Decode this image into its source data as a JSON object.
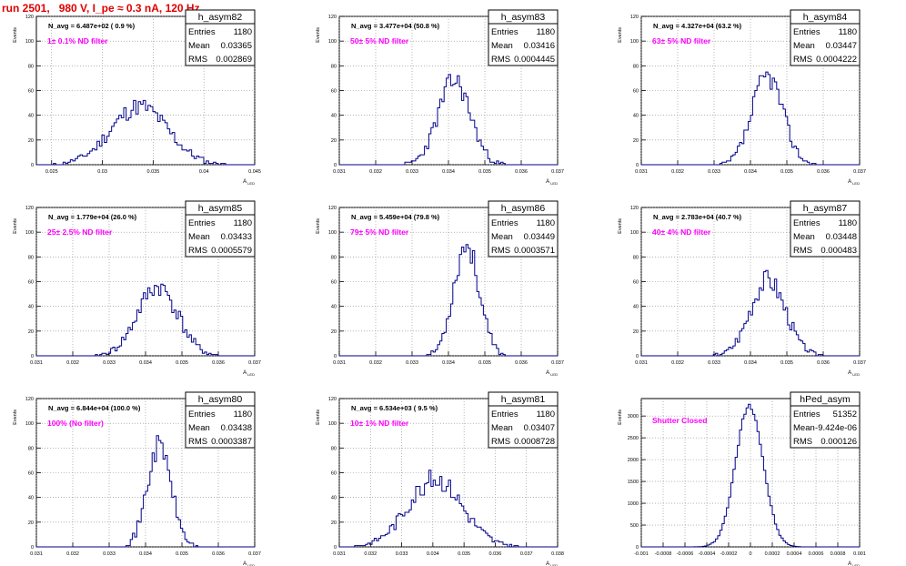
{
  "run_title": "run 2501,   980 V, I_pe ≈ 0.3 nA, 120 Hz",
  "colors": {
    "title": "#e00000",
    "filter_label": "#ff00ff",
    "histogram": "#00008b",
    "axis": "#000000",
    "grid": "#888888"
  },
  "stats_labels": {
    "entries": "Entries",
    "mean": "Mean",
    "rms": "RMS"
  },
  "y_axis_title": "Events",
  "x_axis_title": "A_{LED}",
  "chart_data": [
    {
      "type": "histogram",
      "name": "h_asym82",
      "navg": "N_avg = 6.487e+02 ( 0.9 %)",
      "filter": "1± 0.1% ND filter",
      "entries": "1180",
      "mean": "0.03365",
      "rms": "0.002869",
      "xlim": [
        0.0235,
        0.045
      ],
      "ylim": [
        0,
        120
      ],
      "xticks": [
        0.025,
        0.03,
        0.035,
        0.04,
        0.045
      ],
      "xticklabels": [
        "0.025",
        "0.03",
        "0.035",
        "0.04",
        "0.045"
      ],
      "yticks": [
        0,
        20,
        40,
        60,
        80,
        100,
        120
      ],
      "center": 0.03365,
      "sigma": 0.0028,
      "peak": 47,
      "nbins": 90,
      "seed": 11
    },
    {
      "type": "histogram",
      "name": "h_asym83",
      "navg": "N_avg = 3.477e+04 (50.8 %)",
      "filter": "50± 5% ND filter",
      "entries": "1180",
      "mean": "0.03416",
      "rms": "0.0004445",
      "xlim": [
        0.031,
        0.037
      ],
      "ylim": [
        0,
        120
      ],
      "xticks": [
        0.031,
        0.032,
        0.033,
        0.034,
        0.035,
        0.036,
        0.037
      ],
      "xticklabels": [
        "0.031",
        "0.032",
        "0.033",
        "0.034",
        "0.035",
        "0.036",
        "0.037"
      ],
      "yticks": [
        0,
        20,
        40,
        60,
        80,
        100,
        120
      ],
      "center": 0.03416,
      "sigma": 0.00044,
      "peak": 68,
      "nbins": 100,
      "seed": 23
    },
    {
      "type": "histogram",
      "name": "h_asym84",
      "navg": "N_avg = 4.327e+04 (63.2 %)",
      "filter": "63± 5% ND filter",
      "entries": "1180",
      "mean": "0.03447",
      "rms": "0.0004222",
      "xlim": [
        0.031,
        0.037
      ],
      "ylim": [
        0,
        120
      ],
      "xticks": [
        0.031,
        0.032,
        0.033,
        0.034,
        0.035,
        0.036,
        0.037
      ],
      "xticklabels": [
        "0.031",
        "0.032",
        "0.033",
        "0.034",
        "0.035",
        "0.036",
        "0.037"
      ],
      "yticks": [
        0,
        20,
        40,
        60,
        80,
        100,
        120
      ],
      "center": 0.03447,
      "sigma": 0.00042,
      "peak": 72,
      "nbins": 100,
      "seed": 37
    },
    {
      "type": "histogram",
      "name": "h_asym85",
      "navg": "N_avg = 1.779e+04 (26.0 %)",
      "filter": "25± 2.5% ND filter",
      "entries": "1180",
      "mean": "0.03433",
      "rms": "0.0005579",
      "xlim": [
        0.031,
        0.037
      ],
      "ylim": [
        0,
        120
      ],
      "xticks": [
        0.031,
        0.032,
        0.033,
        0.034,
        0.035,
        0.036,
        0.037
      ],
      "xticklabels": [
        "0.031",
        "0.032",
        "0.033",
        "0.034",
        "0.035",
        "0.036",
        "0.037"
      ],
      "yticks": [
        0,
        20,
        40,
        60,
        80,
        100,
        120
      ],
      "center": 0.03433,
      "sigma": 0.00055,
      "peak": 56,
      "nbins": 100,
      "seed": 41
    },
    {
      "type": "histogram",
      "name": "h_asym86",
      "navg": "N_avg = 5.459e+04 (79.8 %)",
      "filter": "79± 5% ND filter",
      "entries": "1180",
      "mean": "0.03449",
      "rms": "0.0003571",
      "xlim": [
        0.031,
        0.037
      ],
      "ylim": [
        0,
        120
      ],
      "xticks": [
        0.031,
        0.032,
        0.033,
        0.034,
        0.035,
        0.036,
        0.037
      ],
      "xticklabels": [
        "0.031",
        "0.032",
        "0.033",
        "0.034",
        "0.035",
        "0.036",
        "0.037"
      ],
      "yticks": [
        0,
        20,
        40,
        60,
        80,
        100,
        120
      ],
      "center": 0.03449,
      "sigma": 0.00035,
      "peak": 90,
      "nbins": 100,
      "seed": 53
    },
    {
      "type": "histogram",
      "name": "h_asym87",
      "navg": "N_avg = 2.783e+04 (40.7 %)",
      "filter": "40± 4% ND filter",
      "entries": "1180",
      "mean": "0.03448",
      "rms": "0.000483",
      "xlim": [
        0.031,
        0.037
      ],
      "ylim": [
        0,
        120
      ],
      "xticks": [
        0.031,
        0.032,
        0.033,
        0.034,
        0.035,
        0.036,
        0.037
      ],
      "xticklabels": [
        "0.031",
        "0.032",
        "0.033",
        "0.034",
        "0.035",
        "0.036",
        "0.037"
      ],
      "yticks": [
        0,
        20,
        40,
        60,
        80,
        100,
        120
      ],
      "center": 0.03448,
      "sigma": 0.00048,
      "peak": 62,
      "nbins": 100,
      "seed": 67
    },
    {
      "type": "histogram",
      "name": "h_asym80",
      "navg": "N_avg = 6.844e+04 (100.0 %)",
      "filter": "100% (No filter)",
      "entries": "1180",
      "mean": "0.03438",
      "rms": "0.0003387",
      "xlim": [
        0.031,
        0.037
      ],
      "ylim": [
        0,
        120
      ],
      "xticks": [
        0.031,
        0.032,
        0.033,
        0.034,
        0.035,
        0.036,
        0.037
      ],
      "xticklabels": [
        "0.031",
        "0.032",
        "0.033",
        "0.034",
        "0.035",
        "0.036",
        "0.037"
      ],
      "yticks": [
        0,
        20,
        40,
        60,
        80,
        100,
        120
      ],
      "center": 0.03438,
      "sigma": 0.00033,
      "peak": 82,
      "nbins": 100,
      "seed": 71
    },
    {
      "type": "histogram",
      "name": "h_asym81",
      "navg": "N_avg = 6.534e+03 ( 9.5 %)",
      "filter": "10± 1% ND filter",
      "entries": "1180",
      "mean": "0.03407",
      "rms": "0.0008728",
      "xlim": [
        0.031,
        0.038
      ],
      "ylim": [
        0,
        120
      ],
      "xticks": [
        0.031,
        0.032,
        0.033,
        0.034,
        0.035,
        0.036,
        0.037,
        0.038
      ],
      "xticklabels": [
        "0.031",
        "0.032",
        "0.033",
        "0.034",
        "0.035",
        "0.036",
        "0.037",
        "0.038"
      ],
      "yticks": [
        0,
        20,
        40,
        60,
        80,
        100,
        120
      ],
      "center": 0.03407,
      "sigma": 0.00087,
      "peak": 55,
      "nbins": 100,
      "seed": 83
    },
    {
      "type": "histogram",
      "name": "hPed_asym",
      "navg": "",
      "filter": "Shutter Closed",
      "entries": "51352",
      "mean": "-9.424e-06",
      "rms": "0.000126",
      "xlim": [
        -0.001,
        0.001
      ],
      "ylim": [
        0,
        3400
      ],
      "xticks": [
        -0.001,
        -0.0008,
        -0.0006,
        -0.0004,
        -0.0002,
        0,
        0.0002,
        0.0004,
        0.0006,
        0.0008,
        0.001
      ],
      "xticklabels": [
        "-0.001",
        "-0.0008",
        "-0.0006",
        "-0.0004",
        "-0.0002",
        "0",
        "0.0002",
        "0.0004",
        "0.0006",
        "0.0008",
        "0.001"
      ],
      "yticks": [
        0,
        500,
        1000,
        1500,
        2000,
        2500,
        3000
      ],
      "center": -9.4e-06,
      "sigma": 0.000126,
      "peak": 3250,
      "nbins": 100,
      "seed": 97
    }
  ]
}
